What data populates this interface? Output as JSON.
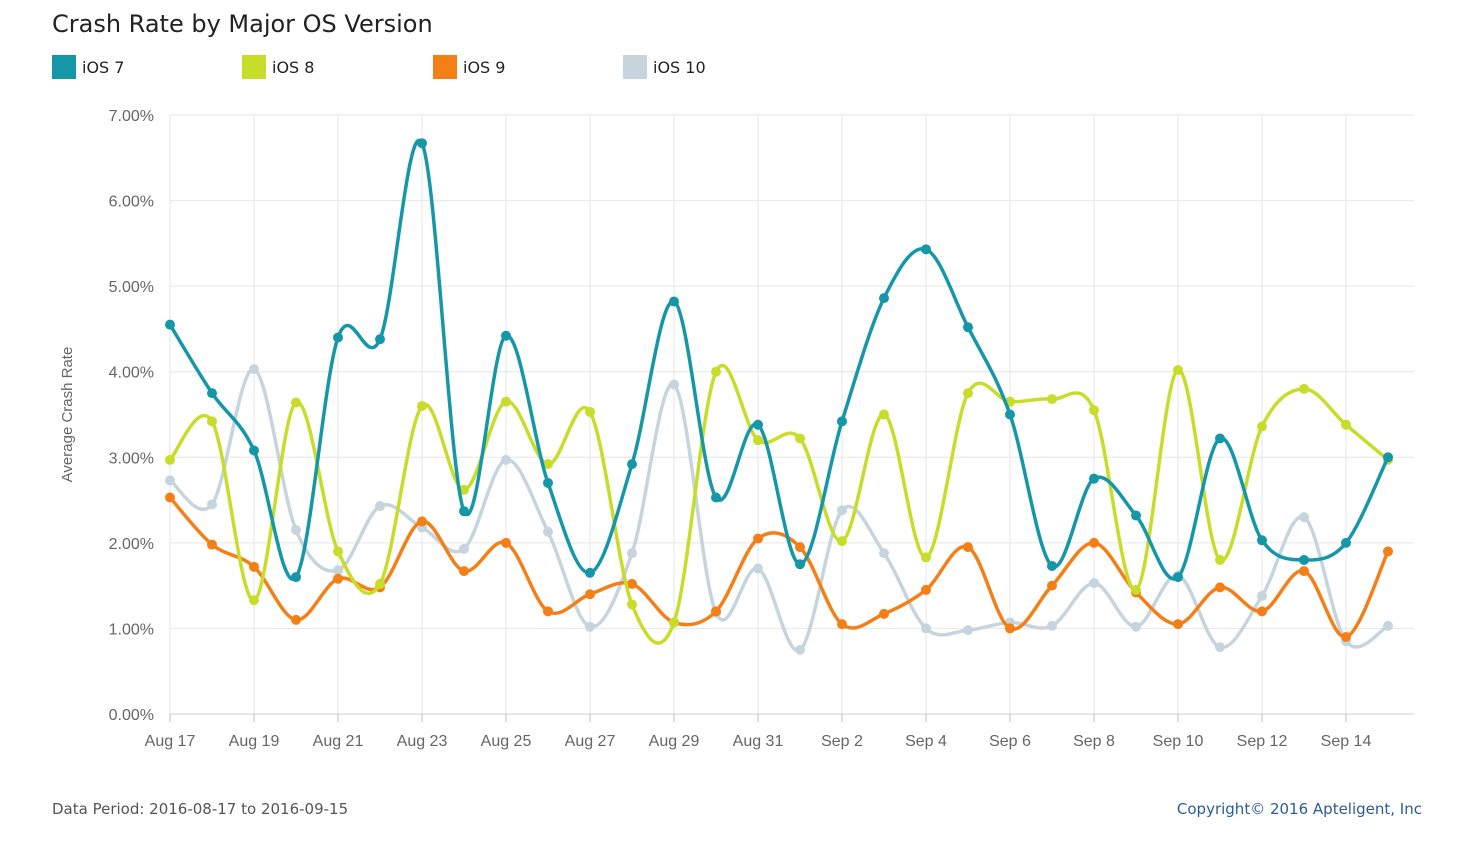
{
  "chart_data": {
    "type": "line",
    "title": "Crash Rate by Major OS Version",
    "xlabel": "",
    "ylabel": "Average Crash Rate",
    "ylim": [
      0,
      7
    ],
    "y_ticks": [
      "0.00%",
      "1.00%",
      "2.00%",
      "3.00%",
      "4.00%",
      "5.00%",
      "6.00%",
      "7.00%"
    ],
    "x_ticks": [
      "Aug 17",
      "Aug 19",
      "Aug 21",
      "Aug 23",
      "Aug 25",
      "Aug 27",
      "Aug 29",
      "Aug 31",
      "Sep 2",
      "Sep 4",
      "Sep 6",
      "Sep 8",
      "Sep 10",
      "Sep 12",
      "Sep 14"
    ],
    "x": [
      "2016-08-17",
      "2016-08-18",
      "2016-08-19",
      "2016-08-20",
      "2016-08-21",
      "2016-08-22",
      "2016-08-23",
      "2016-08-24",
      "2016-08-25",
      "2016-08-26",
      "2016-08-27",
      "2016-08-28",
      "2016-08-29",
      "2016-08-30",
      "2016-08-31",
      "2016-09-01",
      "2016-09-02",
      "2016-09-03",
      "2016-09-04",
      "2016-09-05",
      "2016-09-06",
      "2016-09-07",
      "2016-09-08",
      "2016-09-09",
      "2016-09-10",
      "2016-09-11",
      "2016-09-12",
      "2016-09-13",
      "2016-09-14",
      "2016-09-15"
    ],
    "grid": true,
    "legend_position": "top-left",
    "series": [
      {
        "name": "iOS 7",
        "color": "#1597a8",
        "values": [
          4.55,
          3.75,
          3.08,
          1.6,
          4.4,
          4.38,
          6.67,
          2.37,
          4.42,
          2.7,
          1.65,
          2.92,
          4.82,
          2.53,
          3.38,
          1.75,
          3.42,
          4.86,
          5.43,
          4.52,
          3.5,
          1.73,
          2.75,
          2.32,
          1.6,
          3.22,
          2.03,
          1.8,
          2.0,
          3.0
        ]
      },
      {
        "name": "iOS 8",
        "color": "#c8dc2a",
        "values": [
          2.97,
          3.42,
          1.33,
          3.64,
          1.9,
          1.52,
          3.6,
          2.62,
          3.65,
          2.92,
          3.53,
          1.28,
          1.07,
          4.0,
          3.2,
          3.22,
          2.02,
          3.5,
          1.83,
          3.75,
          3.65,
          3.68,
          3.55,
          1.45,
          4.02,
          1.8,
          3.36,
          3.8,
          3.38,
          2.97
        ]
      },
      {
        "name": "iOS 9",
        "color": "#f57f17",
        "values": [
          2.53,
          1.98,
          1.72,
          1.1,
          1.58,
          1.48,
          2.25,
          1.67,
          2.0,
          1.2,
          1.4,
          1.52,
          1.07,
          1.2,
          2.05,
          1.95,
          1.05,
          1.17,
          1.45,
          1.95,
          1.0,
          1.5,
          2.0,
          1.42,
          1.05,
          1.48,
          1.2,
          1.67,
          0.9,
          1.9
        ]
      },
      {
        "name": "iOS 10",
        "color": "#c6d5dd",
        "values": [
          2.73,
          2.45,
          4.03,
          2.15,
          1.68,
          2.43,
          2.18,
          1.93,
          2.97,
          2.13,
          1.02,
          1.88,
          3.85,
          1.18,
          1.7,
          0.75,
          2.38,
          1.88,
          1.0,
          0.98,
          1.07,
          1.03,
          1.53,
          1.02,
          1.62,
          0.78,
          1.38,
          2.3,
          0.85,
          1.03
        ]
      }
    ]
  },
  "footer": {
    "data_period": "Data Period: 2016-08-17 to 2016-09-15",
    "copyright": "Copyright© 2016 Apteligent, Inc"
  }
}
